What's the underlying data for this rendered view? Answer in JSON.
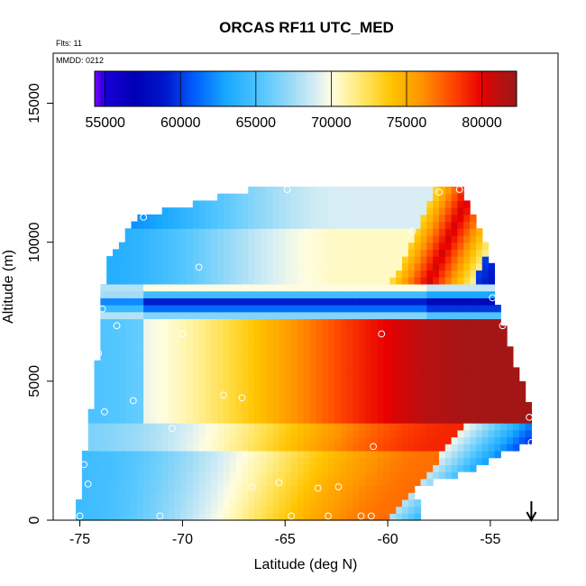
{
  "chart_data": {
    "type": "heatmap",
    "title": "ORCAS RF11 UTC_MED",
    "annotations": {
      "flights": "Flts: 11",
      "date": "MMDD: 0212"
    },
    "xlabel": "Latitude (deg N)",
    "ylabel": "Altitude (m)",
    "xlim": [
      -76.3,
      -51.7
    ],
    "ylim": [
      0,
      16800
    ],
    "x_ticks": [
      -75,
      -70,
      -65,
      -60,
      -55
    ],
    "y_ticks": [
      0,
      5000,
      10000,
      15000
    ],
    "colorbar": {
      "min": 54300,
      "max": 82300,
      "ticks": [
        55000,
        60000,
        65000,
        70000,
        75000,
        80000
      ],
      "stops": [
        {
          "v": 54300,
          "c": "#7b00ff"
        },
        {
          "v": 55000,
          "c": "#1a00d8"
        },
        {
          "v": 57000,
          "c": "#0000b4"
        },
        {
          "v": 59000,
          "c": "#0018cc"
        },
        {
          "v": 61000,
          "c": "#0060ff"
        },
        {
          "v": 63000,
          "c": "#18a8ff"
        },
        {
          "v": 65500,
          "c": "#58c8ff"
        },
        {
          "v": 67500,
          "c": "#a0dcf6"
        },
        {
          "v": 69000,
          "c": "#d8eef4"
        },
        {
          "v": 70000,
          "c": "#fffde0"
        },
        {
          "v": 71000,
          "c": "#fff4a8"
        },
        {
          "v": 72500,
          "c": "#ffe050"
        },
        {
          "v": 74000,
          "c": "#ffc400"
        },
        {
          "v": 76000,
          "c": "#ff9400"
        },
        {
          "v": 78000,
          "c": "#ff4800"
        },
        {
          "v": 80000,
          "c": "#e80000"
        },
        {
          "v": 81200,
          "c": "#b81010"
        },
        {
          "v": 82300,
          "c": "#9c1818"
        }
      ]
    },
    "field": {
      "description": "UTC_MED time-of-flight heatmap (seconds UTC) over latitude and altitude",
      "lat_range": [
        -75.2,
        -53.0
      ],
      "alt_range": [
        0,
        12100
      ],
      "cell_deg": 0.3,
      "cell_m": 250
    },
    "sample_points": [
      [
        -75.0,
        150
      ],
      [
        -74.8,
        2000
      ],
      [
        -74.6,
        1300
      ],
      [
        -74.1,
        6000
      ],
      [
        -73.9,
        7600
      ],
      [
        -73.8,
        3900
      ],
      [
        -73.2,
        7000
      ],
      [
        -72.4,
        4300
      ],
      [
        -71.9,
        10900
      ],
      [
        -71.1,
        150
      ],
      [
        -70.5,
        3300
      ],
      [
        -70.0,
        6700
      ],
      [
        -69.2,
        9100
      ],
      [
        -68.0,
        4500
      ],
      [
        -67.1,
        4400
      ],
      [
        -66.6,
        1200
      ],
      [
        -64.9,
        11900
      ],
      [
        -65.3,
        1350
      ],
      [
        -64.7,
        150
      ],
      [
        -63.4,
        1150
      ],
      [
        -62.9,
        150
      ],
      [
        -62.4,
        1200
      ],
      [
        -61.3,
        150
      ],
      [
        -60.8,
        150
      ],
      [
        -60.7,
        2650
      ],
      [
        -60.3,
        6700
      ],
      [
        -58.8,
        10400
      ],
      [
        -57.5,
        11800
      ],
      [
        -56.5,
        11900
      ],
      [
        -54.9,
        8000
      ],
      [
        -54.4,
        7000
      ],
      [
        -53.1,
        3700
      ],
      [
        -53.0,
        2800
      ]
    ],
    "aircraft_arrow": {
      "lat": -53.0,
      "direction": "down"
    }
  }
}
